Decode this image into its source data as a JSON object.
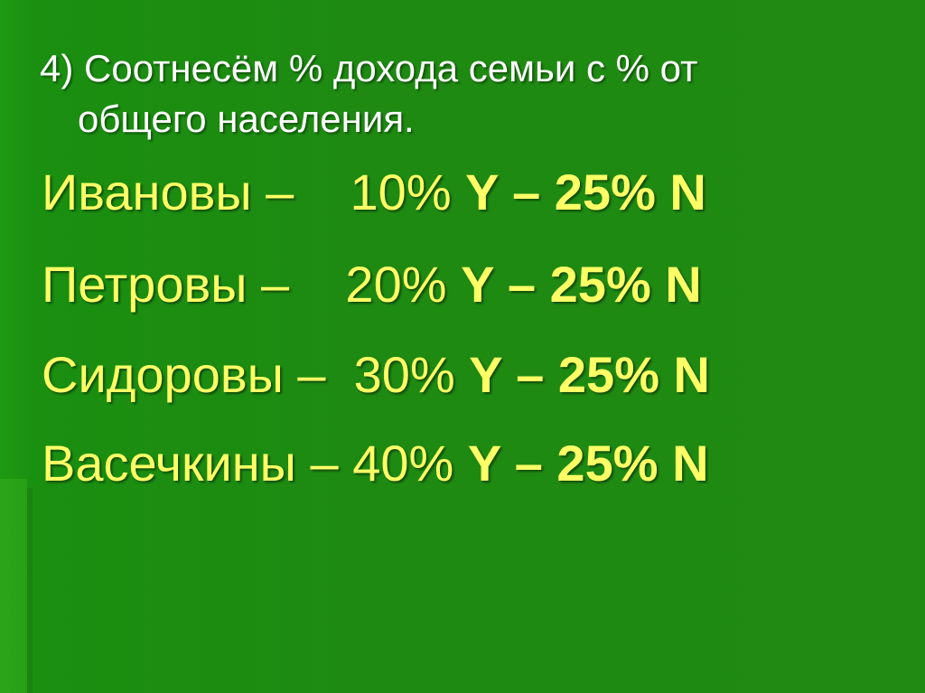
{
  "title": {
    "line1": "4) Соотнесём % дохода семьи с % от",
    "line2": "общего населения."
  },
  "rows": [
    {
      "name": "Ивановы –    ",
      "income": "10% ",
      "rest": "Y – 25% N"
    },
    {
      "name": "Петровы –    ",
      "income": "20% ",
      "rest": "Y – 25% N"
    },
    {
      "name": "Сидоровы –  ",
      "income": "30% ",
      "rest": "Y – 25% N"
    },
    {
      "name": "Васечкины – ",
      "income": "40% ",
      "rest": "Y – 25% N"
    }
  ],
  "colors": {
    "background": "#1e8a12",
    "title": "#ffffff",
    "text": "#ffff66"
  }
}
